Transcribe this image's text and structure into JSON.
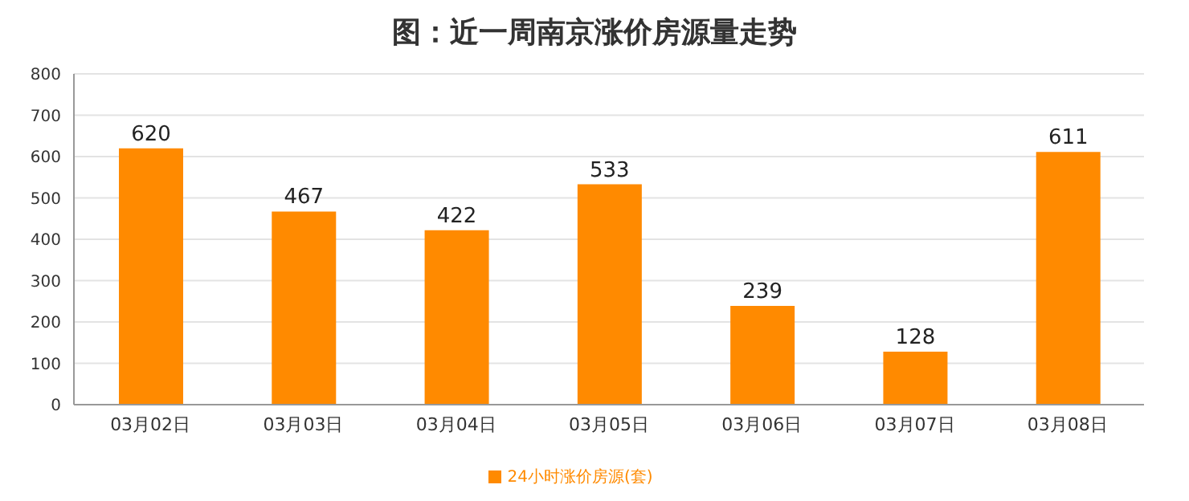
{
  "chart_data": {
    "type": "bar",
    "title": "图：近一周南京涨价房源量走势",
    "categories": [
      "03月02日",
      "03月03日",
      "03月04日",
      "03月05日",
      "03月06日",
      "03月07日",
      "03月08日"
    ],
    "series": [
      {
        "name": "24小时涨价房源(套)",
        "color": "#ff8a00",
        "values": [
          620,
          467,
          422,
          533,
          239,
          128,
          611
        ]
      }
    ],
    "ylim": [
      0,
      800
    ],
    "yticks": [
      0,
      100,
      200,
      300,
      400,
      500,
      600,
      700,
      800
    ],
    "grid": "y",
    "legend": "bottom",
    "data_labels": true
  }
}
